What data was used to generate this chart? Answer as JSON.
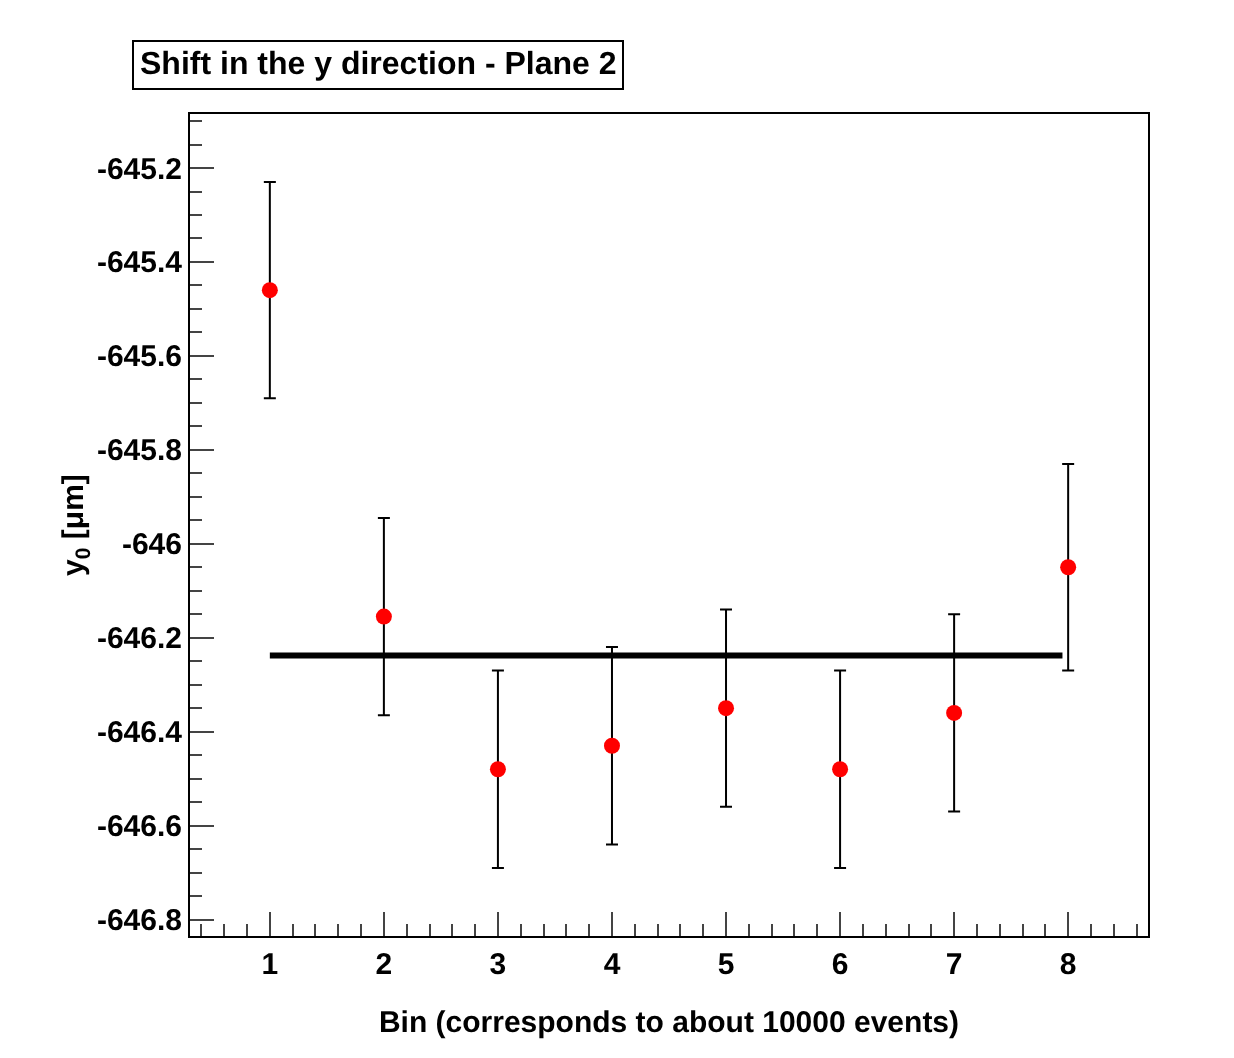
{
  "chart_data": {
    "type": "scatter",
    "title": "Shift in the y direction - Plane 2",
    "xlabel": "Bin (corresponds to about 10000 events)",
    "ylabel": "y$_{0}$ [μm]",
    "xlim": [
      0.3,
      8.7
    ],
    "xticks": [
      1,
      2,
      3,
      4,
      5,
      6,
      7,
      8
    ],
    "ylim": [
      -646.835,
      -645.085
    ],
    "yticks": [
      -646.8,
      -646.6,
      -646.4,
      -646.2,
      -646,
      -645.8,
      -645.6,
      -645.4,
      -645.2
    ],
    "marker": "circle",
    "series": [
      {
        "color": "#ff0000",
        "x": [
          1,
          2,
          3,
          4,
          5,
          6,
          7,
          8
        ],
        "values": [
          -645.46,
          -646.155,
          -646.48,
          -646.43,
          -646.35,
          -646.48,
          -646.36,
          -646.05
        ],
        "errors": [
          0.23,
          0.21,
          0.21,
          0.21,
          0.21,
          0.21,
          0.21,
          0.22
        ]
      },
      {
        "type": "line",
        "marker": "none",
        "color": "#000000",
        "x": [
          1,
          7.95
        ],
        "values": [
          -646.238,
          -646.238
        ]
      }
    ]
  }
}
